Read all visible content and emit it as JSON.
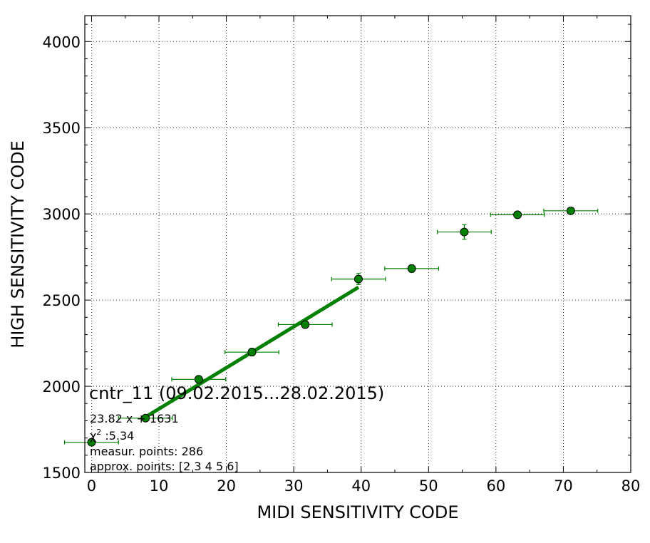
{
  "chart_data": {
    "type": "scatter",
    "xlabel": "MIDI SENSITIVITY CODE",
    "ylabel": "HIGH SENSITIVITY CODE",
    "xlim": [
      -1,
      80
    ],
    "ylim": [
      1500,
      4150
    ],
    "xticks": [
      0,
      10,
      20,
      30,
      40,
      50,
      60,
      70,
      80
    ],
    "yticks": [
      1500,
      2000,
      2500,
      3000,
      3500,
      4000
    ],
    "grid": true,
    "color": "#008000",
    "points": [
      {
        "x": 0,
        "y": 1675,
        "xerr": 4,
        "yerr": 10
      },
      {
        "x": 8,
        "y": 1815,
        "xerr": 4,
        "yerr": 8
      },
      {
        "x": 15.9,
        "y": 2040,
        "xerr": 4,
        "yerr": 22
      },
      {
        "x": 23.8,
        "y": 2198,
        "xerr": 4,
        "yerr": 22
      },
      {
        "x": 31.7,
        "y": 2358,
        "xerr": 4,
        "yerr": 22
      },
      {
        "x": 39.6,
        "y": 2622,
        "xerr": 4,
        "yerr": 32
      },
      {
        "x": 47.5,
        "y": 2683,
        "xerr": 4,
        "yerr": 22
      },
      {
        "x": 55.3,
        "y": 2895,
        "xerr": 4,
        "yerr": 42
      },
      {
        "x": 63.2,
        "y": 2995,
        "xerr": 4,
        "yerr": 16
      },
      {
        "x": 71.1,
        "y": 3018,
        "xerr": 4,
        "yerr": 12
      }
    ],
    "fit": {
      "slope": 23.82,
      "intercept": 1631,
      "x_range": [
        8,
        39.6
      ]
    },
    "annotations": {
      "title": "cntr_11 (09.02.2015...28.02.2015)",
      "formula": "23.82 x + 1631",
      "chi_symbol": "χ",
      "chi_sup": "2",
      "chi_value": " :5.34",
      "measur": "measur. points: 286",
      "approx": "approx. points: [2 3 4 5 6]"
    }
  }
}
